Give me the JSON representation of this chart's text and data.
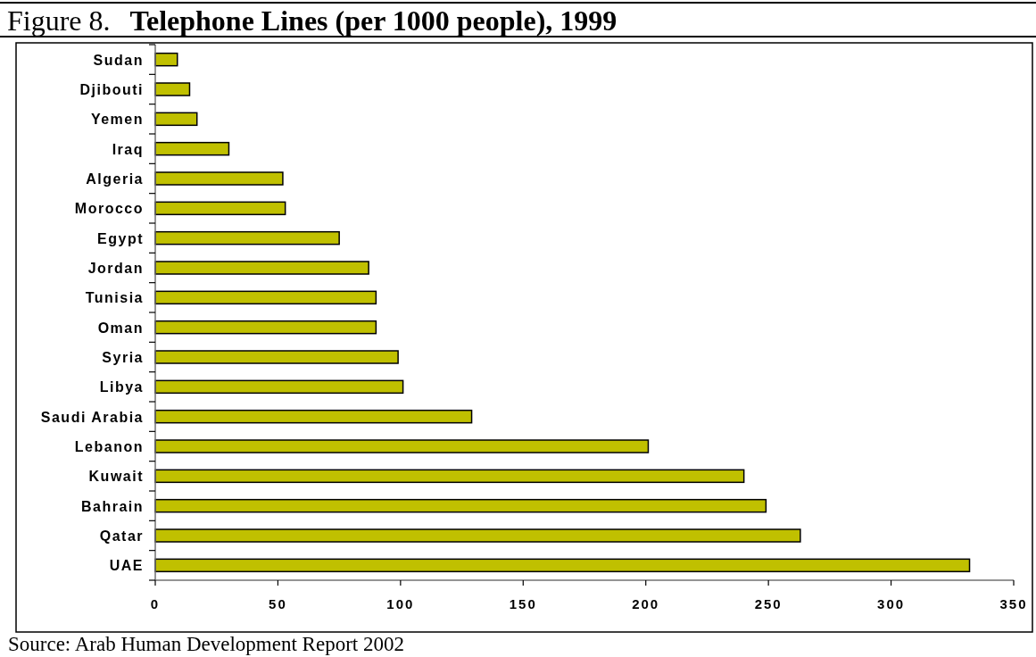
{
  "chart_data": {
    "type": "bar",
    "orientation": "horizontal",
    "title": "Figure 8. Telephone Lines (per 1000 people), 1999",
    "categories": [
      "Sudan",
      "Djibouti",
      "Yemen",
      "Iraq",
      "Algeria",
      "Morocco",
      "Egypt",
      "Jordan",
      "Tunisia",
      "Oman",
      "Syria",
      "Libya",
      "Saudi Arabia",
      "Lebanon",
      "Kuwait",
      "Bahrain",
      "Qatar",
      "UAE"
    ],
    "values": [
      9,
      14,
      17,
      30,
      52,
      53,
      75,
      87,
      90,
      90,
      99,
      101,
      129,
      201,
      240,
      249,
      263,
      332
    ],
    "color": "#c0c000",
    "xlim": [
      0,
      350
    ],
    "xticks": [
      0,
      50,
      100,
      150,
      200,
      250,
      300,
      350
    ],
    "annotations": [
      "Source: Arab Human Development Report 2002"
    ]
  }
}
